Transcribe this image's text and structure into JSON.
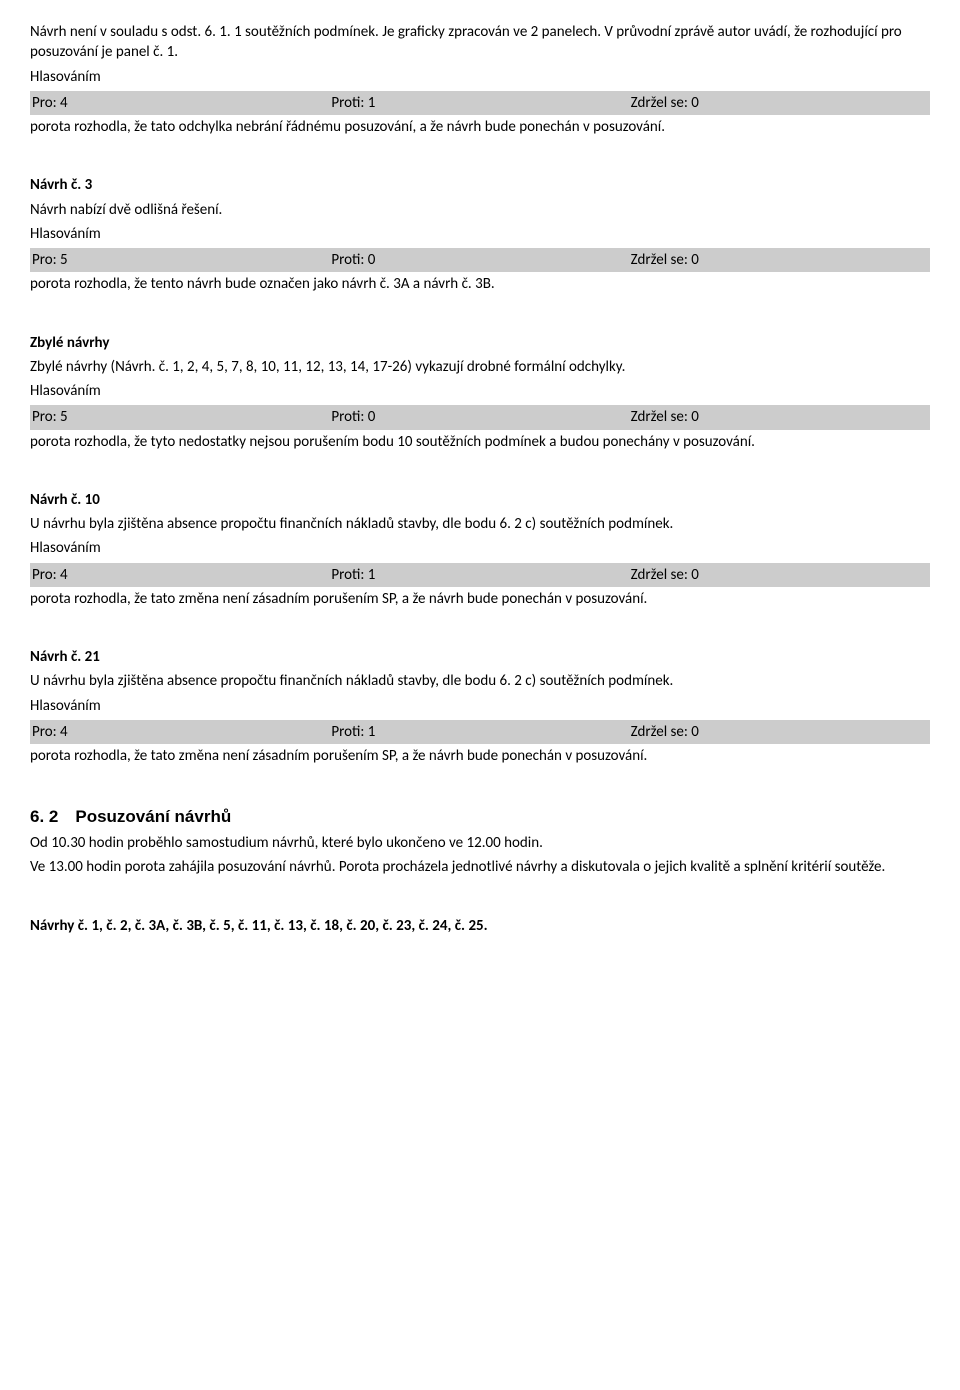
{
  "block1": {
    "p1": "Návrh není v souladu s odst. 6. 1. 1 soutěžních podmínek. Je graficky zpracován ve 2 panelech. V průvodní zprávě autor uvádí, že rozhodující pro posuzování je panel č. 1.",
    "hlas": "Hlasováním",
    "pro": "Pro: 4",
    "proti": "Proti: 1",
    "zdrzel": "Zdržel se: 0",
    "result": "porota rozhodla, že tato odchylka nebrání řádnému posuzování, a že návrh bude ponechán v posuzování."
  },
  "block2": {
    "title": "Návrh č. 3",
    "p1": "Návrh nabízí dvě odlišná řešení.",
    "hlas": "Hlasováním",
    "pro": "Pro: 5",
    "proti": "Proti: 0",
    "zdrzel": "Zdržel se: 0",
    "result": "porota rozhodla, že tento návrh bude označen jako návrh č. 3A a návrh č. 3B."
  },
  "block3": {
    "title": "Zbylé návrhy",
    "p1": "Zbylé návrhy (Návrh. č. 1, 2, 4, 5, 7, 8, 10, 11, 12, 13, 14, 17-26) vykazují drobné formální odchylky.",
    "hlas": "Hlasováním",
    "pro": "Pro: 5",
    "proti": "Proti: 0",
    "zdrzel": "Zdržel se: 0",
    "result": "porota rozhodla, že tyto nedostatky nejsou porušením bodu 10 soutěžních podmínek a budou ponechány v posuzování."
  },
  "block4": {
    "title": "Návrh č. 10",
    "p1": "U návrhu byla zjištěna absence propočtu finančních nákladů stavby, dle bodu 6. 2 c) soutěžních podmínek.",
    "hlas": "Hlasováním",
    "pro": "Pro: 4",
    "proti": "Proti: 1",
    "zdrzel": "Zdržel se: 0",
    "result": "porota rozhodla, že tato změna není zásadním porušením SP, a že návrh bude ponechán v posuzování."
  },
  "block5": {
    "title": "Návrh č. 21",
    "p1": "U návrhu byla zjištěna absence propočtu finančních nákladů stavby, dle bodu 6. 2 c) soutěžních podmínek.",
    "hlas": "Hlasováním",
    "pro": "Pro: 4",
    "proti": "Proti: 1",
    "zdrzel": "Zdržel se: 0",
    "result": "porota rozhodla, že tato změna není zásadním porušením SP, a že návrh bude ponechán v posuzování."
  },
  "section62": {
    "heading": "6. 2 Posuzování návrhů",
    "p1": "Od 10.30 hodin proběhlo samostudium návrhů, které bylo ukončeno ve 12.00 hodin.",
    "p2": "Ve 13.00 hodin porota zahájila posuzování návrhů. Porota procházela jednotlivé návrhy a diskutovala o jejich kvalitě a splnění kritérií soutěže."
  },
  "footer": {
    "line": "Návrhy č. 1, č. 2, č. 3A, č. 3B, č. 5, č. 11, č. 13, č. 18, č. 20, č. 23, č. 24, č. 25."
  }
}
